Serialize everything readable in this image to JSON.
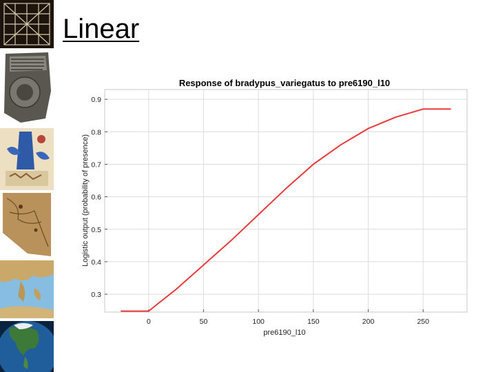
{
  "slide": {
    "title": "Linear"
  },
  "thumbnails": [
    {
      "name": "grid-map-thumbnail"
    },
    {
      "name": "clay-tablet-thumbnail"
    },
    {
      "name": "medieval-map-thumbnail"
    },
    {
      "name": "parchment-map-thumbnail"
    },
    {
      "name": "mediterranean-map-thumbnail"
    },
    {
      "name": "globe-north-america-thumbnail"
    }
  ],
  "chart_data": {
    "type": "line",
    "title": "Response of bradypus_variegatus to pre6190_l10",
    "xlabel": "pre6190_l10",
    "ylabel": "Logistic output (probability of presence)",
    "xlim": [
      -40,
      290
    ],
    "ylim": [
      0.245,
      0.93
    ],
    "x_ticks": [
      0,
      50,
      100,
      150,
      200,
      250
    ],
    "y_ticks": [
      0.3,
      0.4,
      0.5,
      0.6,
      0.7,
      0.8,
      0.9
    ],
    "grid": true,
    "line_color": "#e83a3a",
    "series": [
      {
        "x": [
          -25,
          0,
          10,
          25,
          50,
          75,
          100,
          125,
          150,
          175,
          200,
          225,
          250,
          275
        ],
        "y": [
          0.248,
          0.248,
          0.275,
          0.315,
          0.39,
          0.465,
          0.545,
          0.625,
          0.7,
          0.76,
          0.81,
          0.845,
          0.87,
          0.87
        ]
      }
    ]
  }
}
